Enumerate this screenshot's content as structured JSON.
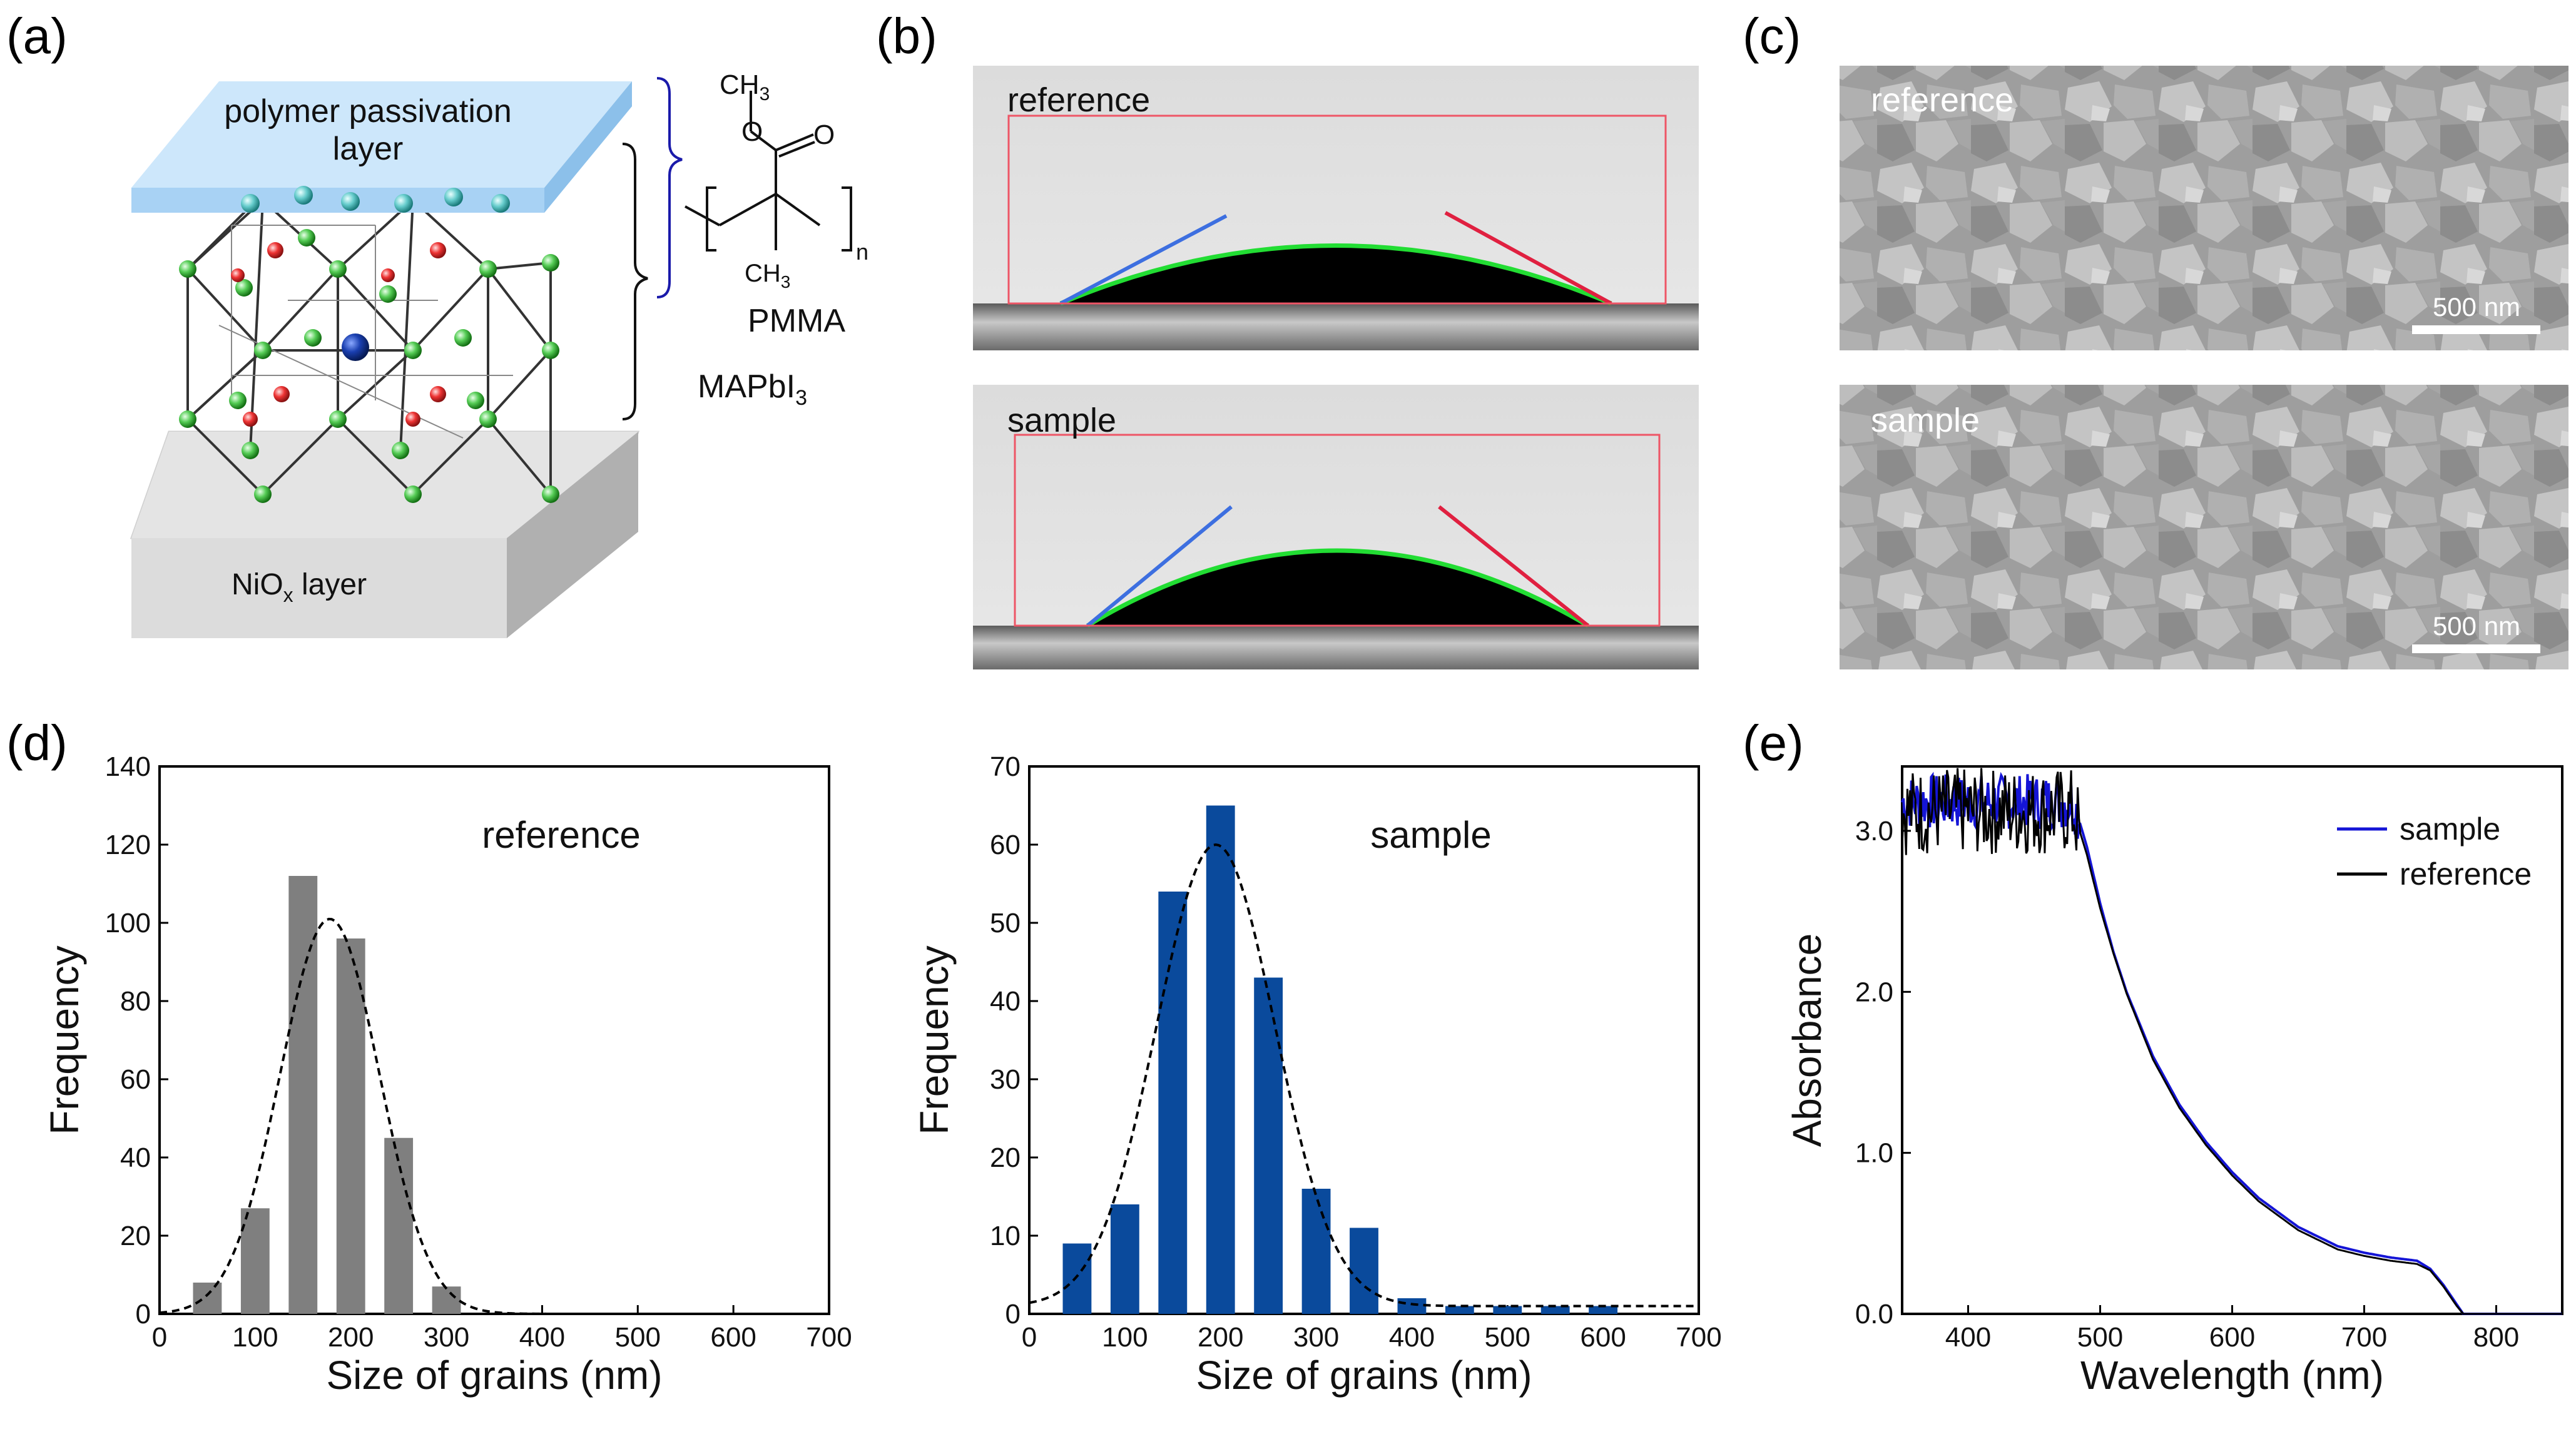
{
  "panel_labels": {
    "a": "(a)",
    "b": "(b)",
    "c": "(c)",
    "d": "(d)",
    "e": "(e)"
  },
  "panel_a": {
    "top_layer": [
      "polymer passivation",
      "layer"
    ],
    "bottom_layer_prefix": "NiO",
    "bottom_layer_sub": "x",
    "bottom_layer_suffix": " layer",
    "chem_ch3_top": "CH",
    "chem_ch3_bottom": "CH",
    "chem_sub3": "3",
    "chem_o": "O",
    "chem_n": "n",
    "pmma_label": "PMMA",
    "mapbi_prefix": "MAPbI",
    "mapbi_sub": "3"
  },
  "panel_b": {
    "top_label": "reference",
    "bottom_label": "sample"
  },
  "panel_c": {
    "top_label": "reference",
    "bottom_label": "sample",
    "scale_bar": "500 nm"
  },
  "colors": {
    "gray_bar": "#7f7f7f",
    "blue_bar": "#0a4a9c",
    "fit": "#000000",
    "sample_line": "#1515d6",
    "reference_line": "#000000",
    "contact_left": "#3d6fe0",
    "contact_right": "#e02040",
    "droplet_edge": "#22dd33",
    "frame_red": "#ee5566"
  },
  "chart_data": [
    {
      "id": "d-reference",
      "type": "bar",
      "annotation": "reference",
      "xlabel": "Size of grains (nm)",
      "ylabel": "Frequency",
      "xlim": [
        0,
        700
      ],
      "ylim": [
        0,
        140
      ],
      "xticks": [
        0,
        100,
        200,
        300,
        400,
        500,
        600,
        700
      ],
      "yticks": [
        0,
        20,
        40,
        60,
        80,
        100,
        120,
        140
      ],
      "bin_width": 30,
      "categories": [
        50,
        100,
        150,
        200,
        250,
        300
      ],
      "values": [
        8,
        27,
        112,
        96,
        45,
        7
      ],
      "fit": {
        "type": "gaussian",
        "amplitude": 101,
        "center": 178,
        "sigma": 52
      }
    },
    {
      "id": "d-sample",
      "type": "bar",
      "annotation": "sample",
      "xlabel": "Size of grains (nm)",
      "ylabel": "Frequency",
      "xlim": [
        0,
        700
      ],
      "ylim": [
        0,
        70
      ],
      "xticks": [
        0,
        100,
        200,
        300,
        400,
        500,
        600,
        700
      ],
      "yticks": [
        0,
        10,
        20,
        30,
        40,
        50,
        60,
        70
      ],
      "bin_width": 30,
      "categories": [
        50,
        100,
        150,
        200,
        250,
        300,
        350,
        400,
        450,
        500,
        550,
        600
      ],
      "values": [
        9,
        14,
        54,
        65,
        43,
        16,
        11,
        2,
        1,
        1,
        1,
        1
      ],
      "fit": {
        "type": "gaussian",
        "amplitude": 59,
        "center": 195,
        "sigma": 62,
        "offset": 1
      }
    },
    {
      "id": "e-absorbance",
      "type": "line",
      "xlabel": "Wavelength (nm)",
      "ylabel": "Absorbance",
      "xlim": [
        350,
        850
      ],
      "ylim": [
        0,
        3.4
      ],
      "xticks": [
        400,
        500,
        600,
        700,
        800
      ],
      "yticks": [
        0.0,
        1.0,
        2.0,
        3.0
      ],
      "ytick_labels": [
        "0.0",
        "1.0",
        "2.0",
        "3.0"
      ],
      "legend_position": "top-right",
      "series": [
        {
          "name": "sample",
          "x": [
            350,
            480,
            490,
            500,
            510,
            520,
            540,
            560,
            580,
            600,
            620,
            650,
            680,
            700,
            720,
            740,
            750,
            760,
            770,
            775,
            850
          ],
          "y": [
            3.18,
            3.18,
            2.9,
            2.55,
            2.25,
            2.0,
            1.6,
            1.3,
            1.07,
            0.88,
            0.72,
            0.54,
            0.42,
            0.38,
            0.35,
            0.33,
            0.28,
            0.18,
            0.06,
            0.0,
            0.0
          ]
        },
        {
          "name": "reference",
          "x": [
            350,
            480,
            490,
            500,
            510,
            520,
            540,
            560,
            580,
            600,
            620,
            650,
            680,
            700,
            720,
            740,
            750,
            760,
            770,
            775,
            850
          ],
          "y": [
            3.12,
            3.12,
            2.85,
            2.52,
            2.24,
            1.99,
            1.58,
            1.28,
            1.05,
            0.86,
            0.7,
            0.52,
            0.4,
            0.36,
            0.33,
            0.31,
            0.27,
            0.17,
            0.05,
            0.0,
            0.0
          ]
        }
      ]
    }
  ]
}
